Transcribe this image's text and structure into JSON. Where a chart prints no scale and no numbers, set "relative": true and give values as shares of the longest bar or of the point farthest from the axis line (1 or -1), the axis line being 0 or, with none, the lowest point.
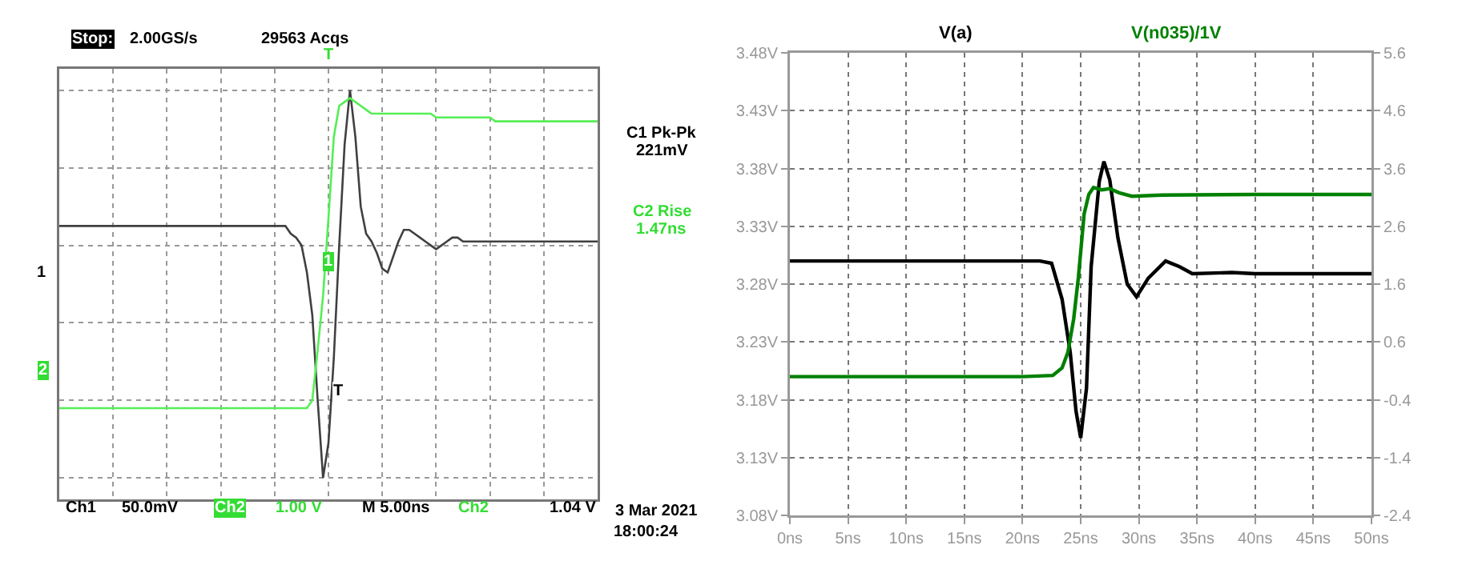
{
  "chart_data": [
    {
      "type": "line",
      "relative": true,
      "grid": true,
      "categories": [
        null,
        null,
        null,
        null,
        null,
        null,
        null,
        null,
        null,
        null,
        null,
        null,
        null,
        null,
        null,
        null,
        null,
        null,
        null,
        null,
        null,
        null,
        null,
        null,
        null,
        null,
        null,
        null,
        null,
        null,
        null,
        null,
        null,
        null,
        null,
        null,
        null,
        null,
        null,
        null,
        null,
        null,
        null,
        null,
        null,
        null,
        null,
        null,
        null,
        null,
        null,
        null,
        null,
        null,
        null,
        null,
        null,
        null,
        null,
        null,
        null,
        null,
        null,
        null,
        null,
        null,
        null,
        null,
        null,
        null,
        null,
        null,
        null,
        null,
        null,
        null,
        null,
        null,
        null,
        null,
        null,
        null,
        null,
        null,
        null,
        null,
        null,
        null,
        null,
        null,
        null,
        null,
        null,
        null,
        null,
        null,
        null,
        null,
        null,
        null,
        null
      ],
      "series": [
        {
          "color": "#404040",
          "values": [
            0.65,
            0.65,
            0.65,
            0.65,
            0.65,
            0.65,
            0.65,
            0.65,
            0.65,
            0.65,
            0.65,
            0.65,
            0.65,
            0.65,
            0.65,
            0.65,
            0.65,
            0.65,
            0.65,
            0.65,
            0.65,
            0.65,
            0.65,
            0.65,
            0.65,
            0.65,
            0.65,
            0.65,
            0.65,
            0.65,
            0.65,
            0.65,
            0.65,
            0.65,
            0.65,
            0.65,
            0.65,
            0.65,
            0.65,
            0.65,
            0.65,
            0.65,
            0.65,
            0.63,
            0.62,
            0.6,
            0.53,
            0.42,
            0.2,
            0.0,
            0.09,
            0.31,
            0.6,
            0.86,
            1.0,
            0.88,
            0.7,
            0.63,
            0.61,
            0.58,
            0.54,
            0.53,
            0.57,
            0.61,
            0.64,
            0.64,
            0.63,
            0.62,
            0.61,
            0.6,
            0.59,
            0.6,
            0.61,
            0.62,
            0.62,
            0.61,
            0.61,
            0.61,
            0.61,
            0.61,
            0.61,
            0.61,
            0.61,
            0.61,
            0.61,
            0.61,
            0.61,
            0.61,
            0.61,
            0.61,
            0.61,
            0.61,
            0.61,
            0.61,
            0.61,
            0.61,
            0.61,
            0.61,
            0.61,
            0.61,
            0.61
          ]
        },
        {
          "color": "#55ee55",
          "values": [
            0.18,
            0.18,
            0.18,
            0.18,
            0.18,
            0.18,
            0.18,
            0.18,
            0.18,
            0.18,
            0.18,
            0.18,
            0.18,
            0.18,
            0.18,
            0.18,
            0.18,
            0.18,
            0.18,
            0.18,
            0.18,
            0.18,
            0.18,
            0.18,
            0.18,
            0.18,
            0.18,
            0.18,
            0.18,
            0.18,
            0.18,
            0.18,
            0.18,
            0.18,
            0.18,
            0.18,
            0.18,
            0.18,
            0.18,
            0.18,
            0.18,
            0.18,
            0.18,
            0.18,
            0.18,
            0.18,
            0.18,
            0.2,
            0.33,
            0.47,
            0.67,
            0.88,
            0.96,
            0.97,
            0.98,
            0.97,
            0.96,
            0.95,
            0.94,
            0.94,
            0.94,
            0.94,
            0.94,
            0.94,
            0.94,
            0.94,
            0.94,
            0.94,
            0.94,
            0.94,
            0.93,
            0.93,
            0.93,
            0.93,
            0.93,
            0.93,
            0.93,
            0.93,
            0.93,
            0.93,
            0.93,
            0.92,
            0.92,
            0.92,
            0.92,
            0.92,
            0.92,
            0.92,
            0.92,
            0.92,
            0.92,
            0.92,
            0.92,
            0.92,
            0.92,
            0.92,
            0.92,
            0.92,
            0.92,
            0.92,
            0.92
          ]
        }
      ],
      "annotations": [
        "Stop:",
        "2.00GS/s",
        "29563 Acqs",
        "C1 Pk-Pk",
        "221mV",
        "C2 Rise",
        "1.47ns",
        "1",
        "2",
        "Ch1",
        "50.0mV",
        "Ch2",
        "1.00 V",
        "M 5.00ns",
        "Ch2",
        "1.04 V",
        "3 Mar 2021",
        "18:00:24",
        "T",
        "T",
        "1"
      ]
    },
    {
      "type": "line",
      "grid": true,
      "xlim": [
        0,
        50
      ],
      "xticks": [
        {
          "value": 0,
          "label": "0ns"
        },
        {
          "value": 5,
          "label": "5ns"
        },
        {
          "value": 10,
          "label": "10ns"
        },
        {
          "value": 15,
          "label": "15ns"
        },
        {
          "value": 20,
          "label": "20ns"
        },
        {
          "value": 25,
          "label": "25ns"
        },
        {
          "value": 30,
          "label": "30ns"
        },
        {
          "value": 35,
          "label": "35ns"
        },
        {
          "value": 40,
          "label": "40ns"
        },
        {
          "value": 45,
          "label": "45ns"
        },
        {
          "value": 50,
          "label": "50ns"
        }
      ],
      "ylim": [
        3.08,
        3.48
      ],
      "yticks": [
        {
          "value": 3.08,
          "label": "3.08V"
        },
        {
          "value": 3.13,
          "label": "3.13V"
        },
        {
          "value": 3.18,
          "label": "3.18V"
        },
        {
          "value": 3.23,
          "label": "3.23V"
        },
        {
          "value": 3.28,
          "label": "3.28V"
        },
        {
          "value": 3.33,
          "label": "3.33V"
        },
        {
          "value": 3.38,
          "label": "3.38V"
        },
        {
          "value": 3.43,
          "label": "3.43V"
        },
        {
          "value": 3.48,
          "label": "3.48V"
        }
      ],
      "y2lim": [
        -2.4,
        5.6
      ],
      "y2ticks": [
        -2.4,
        -1.4,
        -0.4,
        0.6,
        1.6,
        2.6,
        3.6,
        4.6,
        5.6
      ],
      "series": [
        {
          "name": "V(a)",
          "color": "#000000",
          "x": [
            0,
            5,
            10,
            15,
            20,
            21.5,
            22.5,
            23.4,
            24.1,
            24.6,
            25,
            25.5,
            25.9,
            26.6,
            27,
            27.5,
            28.2,
            29,
            29.8,
            30.8,
            32.3,
            33.5,
            34.6,
            38,
            40,
            50
          ],
          "values": [
            3.3,
            3.3,
            3.3,
            3.3,
            3.3,
            3.3,
            3.298,
            3.267,
            3.221,
            3.17,
            3.147,
            3.19,
            3.295,
            3.369,
            3.386,
            3.37,
            3.32,
            3.28,
            3.269,
            3.285,
            3.3,
            3.295,
            3.289,
            3.29,
            3.289,
            3.289
          ]
        },
        {
          "name": "V(n035)/1V",
          "color": "#008000",
          "axis": "y2",
          "x": [
            0,
            20,
            22.6,
            23.4,
            23.9,
            24.4,
            24.8,
            25.3,
            25.7,
            26.1,
            26.8,
            27.5,
            28.3,
            29.4,
            32,
            40,
            50
          ],
          "values": [
            0,
            0,
            0.02,
            0.15,
            0.42,
            1,
            1.71,
            2.82,
            3.15,
            3.27,
            3.23,
            3.25,
            3.18,
            3.12,
            3.14,
            3.15,
            3.15
          ]
        }
      ]
    }
  ]
}
